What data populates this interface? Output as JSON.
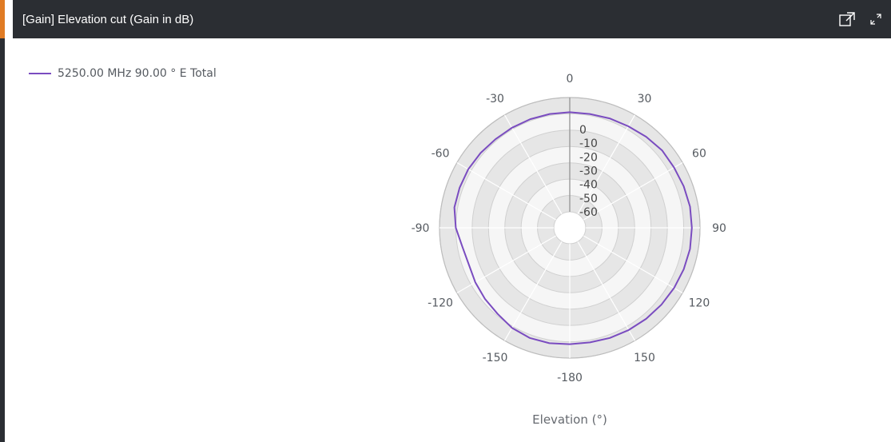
{
  "panel": {
    "title": "[Gain] Elevation cut (Gain in dB)",
    "icons": [
      "popout-icon",
      "expand-icon"
    ]
  },
  "colors": {
    "header_bg": "#2b2e33",
    "accent": "#e07b24",
    "series": "#7a4cc0"
  },
  "chart_data": {
    "type": "polar-line",
    "title": "[Gain] Elevation cut (Gain in dB)",
    "xlabel": "Elevation (°)",
    "angle_ticks": [
      0,
      30,
      60,
      90,
      120,
      150,
      -180,
      -150,
      -120,
      -90,
      -60,
      -30
    ],
    "angle_labels": [
      "0",
      "30",
      "60",
      "90",
      "120",
      "150",
      "-180",
      "-150",
      "-120",
      "-90",
      "-60",
      "-30"
    ],
    "radial_ticks": [
      0,
      -10,
      -20,
      -30,
      -40,
      -50,
      -60
    ],
    "radial_labels": [
      "0",
      "-10",
      "-20",
      "-30",
      "-40",
      "-50",
      "-60"
    ],
    "rlim": [
      -70,
      0
    ],
    "legend_position": "top-left",
    "series": [
      {
        "name": "5250.00 MHz 90.00 ° E Total",
        "color": "#7a4cc0",
        "angles": [
          0,
          10,
          20,
          30,
          40,
          50,
          60,
          70,
          80,
          90,
          100,
          110,
          120,
          130,
          140,
          150,
          160,
          170,
          180,
          -170,
          -160,
          -150,
          -140,
          -130,
          -120,
          -110,
          -100,
          -90,
          -80,
          -70,
          -60,
          -50,
          -40,
          -30,
          -20,
          -10
        ],
        "values": [
          -9,
          -9,
          -8.5,
          -8,
          -7,
          -6,
          -6,
          -5.5,
          -5,
          -5,
          -5,
          -5.5,
          -6,
          -6.5,
          -7,
          -7.5,
          -8,
          -8.5,
          -8.5,
          -8,
          -8,
          -9,
          -11,
          -12,
          -13,
          -14,
          -13,
          -10,
          -8,
          -8,
          -8,
          -8.5,
          -9,
          -9,
          -9,
          -9
        ]
      }
    ]
  }
}
